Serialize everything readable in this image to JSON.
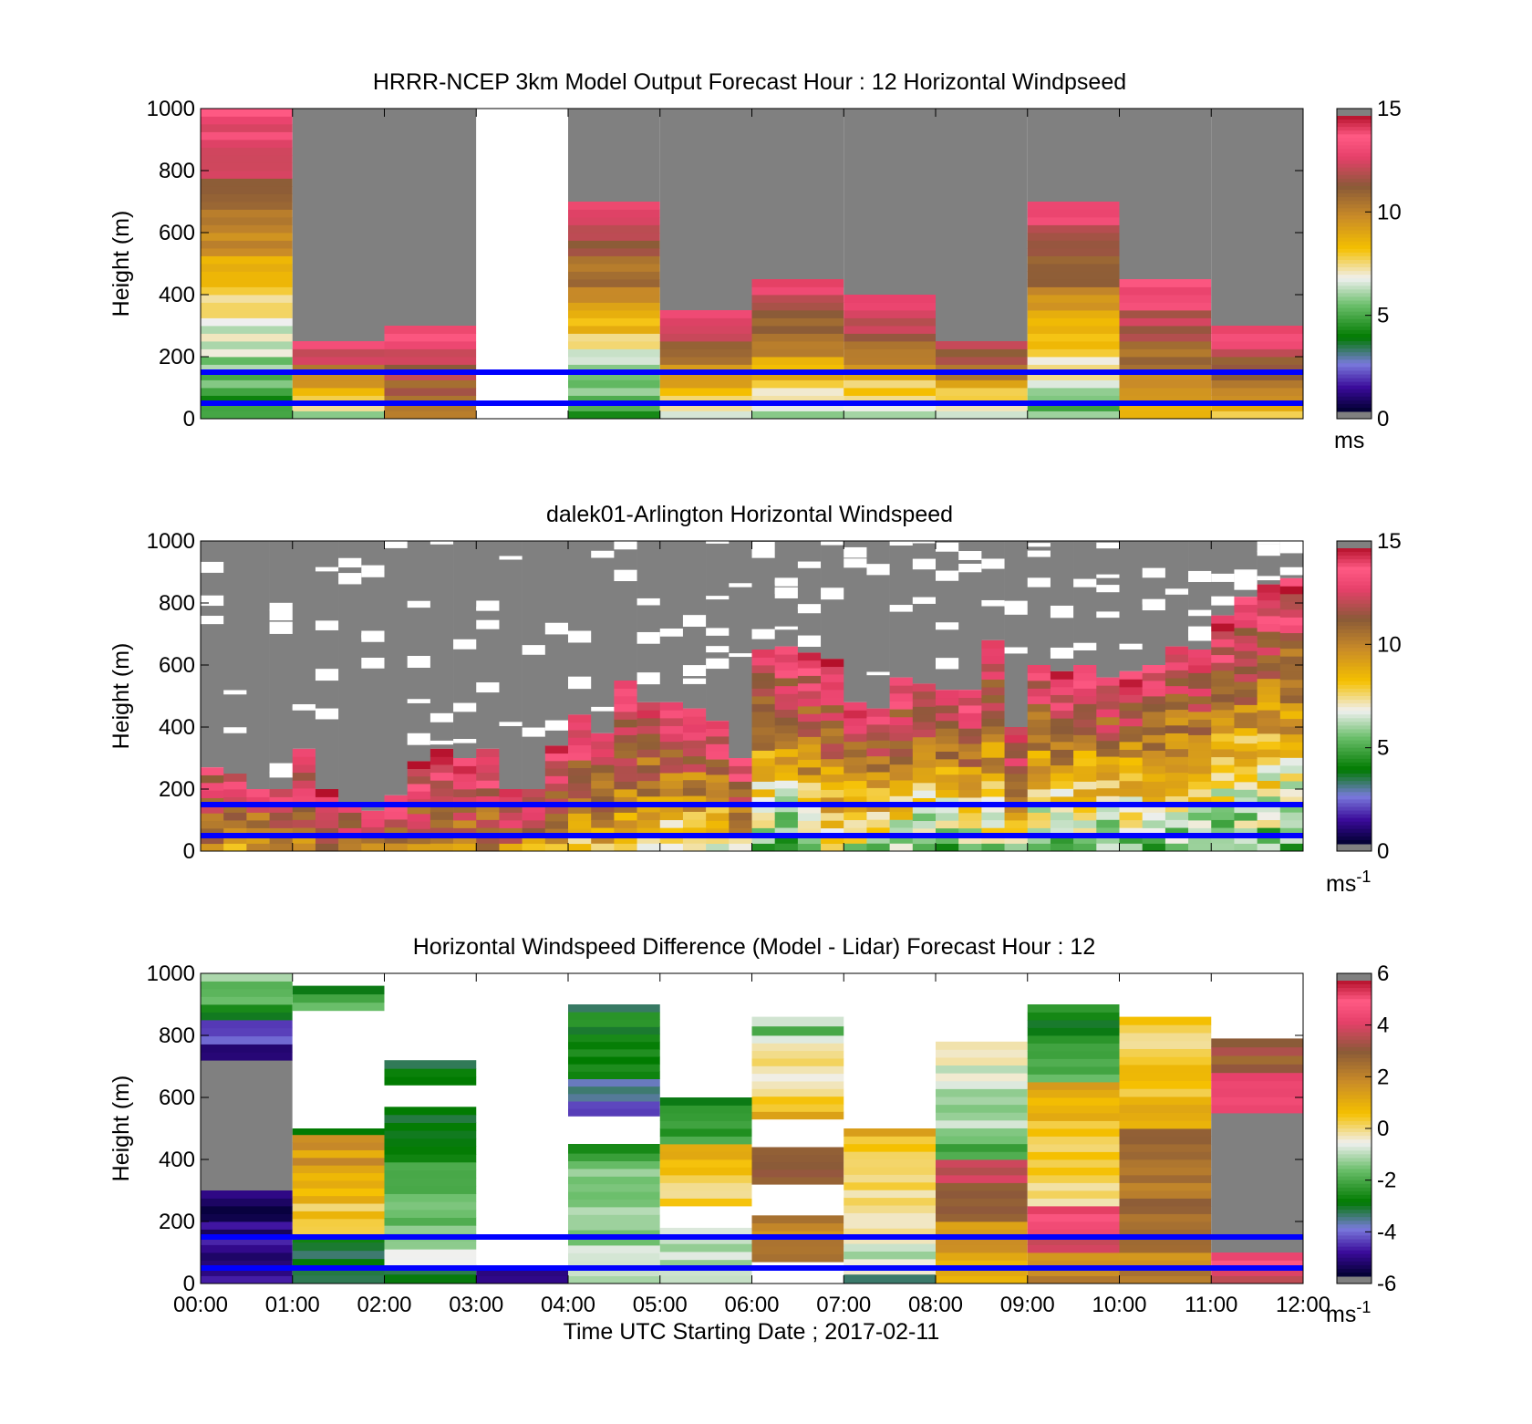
{
  "figure": {
    "x_ticks": [
      "00:00",
      "01:00",
      "02:00",
      "03:00",
      "04:00",
      "05:00",
      "06:00",
      "07:00",
      "08:00",
      "09:00",
      "10:00",
      "11:00",
      "12:00"
    ],
    "x_label": "Time UTC  Starting Date ; 2017-02-11",
    "reference_heights_m": [
      150,
      50
    ],
    "reference_line_color": "#0000ff",
    "missing_data_color": "#808080",
    "no_data_color": "#ffffff"
  },
  "chart_data": [
    {
      "type": "heatmap",
      "title": "HRRR-NCEP 3km Model Output   Forecast Hour : 12 Horizontal Windpseed",
      "ylabel": "Height (m)",
      "xlim": [
        0,
        12
      ],
      "ylim": [
        0,
        1000
      ],
      "y_ticks": [
        "0",
        "200",
        "400",
        "600",
        "800",
        "1000"
      ],
      "colorbar": {
        "ticks": [
          "0",
          "5",
          "10",
          "15"
        ],
        "unit": "ms",
        "unit_sup": "",
        "range": [
          0,
          15
        ]
      },
      "columns": [
        {
          "hour": 0,
          "top_m": 1000,
          "bottom_value": 4,
          "top_value": 14
        },
        {
          "hour": 1,
          "top_m": 250,
          "bottom_value": 6,
          "top_value": 14
        },
        {
          "hour": 2,
          "top_m": 300,
          "bottom_value": 10,
          "top_value": 14
        },
        {
          "hour": 3,
          "top_m": 0,
          "bottom_value": null,
          "top_value": null
        },
        {
          "hour": 4,
          "top_m": 700,
          "bottom_value": 4,
          "top_value": 14
        },
        {
          "hour": 5,
          "top_m": 350,
          "bottom_value": 6,
          "top_value": 14
        },
        {
          "hour": 6,
          "top_m": 450,
          "bottom_value": 6,
          "top_value": 14
        },
        {
          "hour": 7,
          "top_m": 400,
          "bottom_value": 6,
          "top_value": 14
        },
        {
          "hour": 8,
          "top_m": 250,
          "bottom_value": 6,
          "top_value": 13
        },
        {
          "hour": 9,
          "top_m": 700,
          "bottom_value": 5,
          "top_value": 14
        },
        {
          "hour": 10,
          "top_m": 450,
          "bottom_value": 8,
          "top_value": 14
        },
        {
          "hour": 11,
          "top_m": 300,
          "bottom_value": 8,
          "top_value": 14
        }
      ],
      "upper_region": "missing_data"
    },
    {
      "type": "heatmap",
      "title": "dalek01-Arlington  Horizontal Windspeed",
      "ylabel": "Height (m)",
      "xlim": [
        0,
        12
      ],
      "ylim": [
        0,
        1000
      ],
      "y_ticks": [
        "0",
        "200",
        "400",
        "600",
        "800",
        "1000"
      ],
      "colorbar": {
        "ticks": [
          "0",
          "5",
          "10",
          "15"
        ],
        "unit": "ms",
        "unit_sup": "-1",
        "range": [
          0,
          15
        ]
      },
      "sub_columns_per_hour": 4,
      "top_m": [
        270,
        250,
        200,
        200,
        330,
        200,
        150,
        130,
        180,
        290,
        330,
        300,
        330,
        200,
        200,
        340,
        440,
        380,
        550,
        480,
        480,
        460,
        420,
        300,
        650,
        660,
        640,
        620,
        480,
        460,
        560,
        540,
        520,
        520,
        680,
        400,
        600,
        580,
        600,
        560,
        580,
        600,
        660,
        650,
        760,
        820,
        860,
        880
      ],
      "bottom_value": [
        10,
        9,
        9,
        10,
        10,
        10,
        10,
        10,
        10,
        10,
        10,
        10,
        10,
        10,
        9,
        9,
        8,
        8,
        8,
        7,
        7,
        7,
        7,
        8,
        5,
        4,
        6,
        7,
        6,
        6,
        6,
        5,
        5,
        6,
        6,
        6,
        5,
        5,
        5,
        5,
        5,
        5,
        5,
        5,
        5,
        5,
        5,
        5
      ],
      "top_value": [
        13,
        13,
        13,
        14,
        14,
        14,
        14,
        14,
        14,
        14,
        14,
        14,
        14,
        14,
        14,
        14,
        14,
        14,
        14,
        14,
        14,
        14,
        14,
        14,
        14,
        14,
        14,
        14,
        14,
        14,
        14,
        14,
        14,
        14,
        14,
        14,
        14,
        14,
        14,
        14,
        14,
        14,
        14,
        14,
        14,
        14,
        14,
        14
      ],
      "upper_region": "missing_data_with_gaps"
    },
    {
      "type": "heatmap",
      "title": "Horizontal Windspeed Difference (Model - Lidar) Forecast Hour : 12",
      "ylabel": "Height (m)",
      "xlim": [
        0,
        12
      ],
      "ylim": [
        0,
        1000
      ],
      "y_ticks": [
        "0",
        "200",
        "400",
        "600",
        "800",
        "1000"
      ],
      "colorbar": {
        "ticks": [
          "-6",
          "-4",
          "-2",
          "0",
          "2",
          "4",
          "6"
        ],
        "unit": "ms",
        "unit_sup": "-1",
        "range": [
          -6,
          6
        ]
      },
      "columns": [
        {
          "hour": 0,
          "segments": [
            [
              0,
              300,
              -5,
              -5.5
            ],
            [
              300,
              720,
              null,
              null
            ],
            [
              720,
              850,
              -5.5,
              -4
            ],
            [
              850,
              1000,
              -3,
              -1
            ]
          ]
        },
        {
          "hour": 1,
          "segments": [
            [
              0,
              160,
              -4,
              -3
            ],
            [
              160,
              480,
              0,
              2
            ],
            [
              480,
              500,
              -3,
              -3
            ],
            [
              500,
              880,
              "empty",
              "empty"
            ],
            [
              880,
              960,
              -2,
              -3
            ]
          ]
        },
        {
          "hour": 2,
          "segments": [
            [
              0,
              60,
              -3,
              -3
            ],
            [
              60,
              570,
              -1,
              -3
            ],
            [
              570,
              640,
              "empty",
              "empty"
            ],
            [
              640,
              720,
              -3,
              -3
            ]
          ]
        },
        {
          "hour": 3,
          "segments": [
            [
              0,
              50,
              -5,
              -5
            ]
          ]
        },
        {
          "hour": 4,
          "segments": [
            [
              0,
              420,
              -1,
              -2
            ],
            [
              420,
              450,
              -2.5,
              -2.5
            ],
            [
              450,
              540,
              "empty",
              "empty"
            ],
            [
              540,
              660,
              -4,
              -4
            ],
            [
              660,
              900,
              -3,
              -3
            ]
          ]
        },
        {
          "hour": 5,
          "segments": [
            [
              0,
              180,
              -1,
              -1
            ],
            [
              180,
              250,
              "empty",
              "empty"
            ],
            [
              250,
              450,
              0,
              1
            ],
            [
              450,
              600,
              -2,
              -3
            ]
          ]
        },
        {
          "hour": 6,
          "segments": [
            [
              70,
              220,
              2,
              2
            ],
            [
              220,
              320,
              "empty",
              "empty"
            ],
            [
              320,
              440,
              3,
              3
            ],
            [
              440,
              530,
              "empty",
              "empty"
            ],
            [
              530,
              800,
              1,
              -1
            ],
            [
              800,
              860,
              -2,
              -1
            ]
          ]
        },
        {
          "hour": 7,
          "segments": [
            [
              0,
              30,
              -3,
              -3
            ],
            [
              30,
              500,
              -1,
              1
            ]
          ]
        },
        {
          "hour": 8,
          "segments": [
            [
              0,
              200,
              1,
              2
            ],
            [
              200,
              400,
              3,
              4
            ],
            [
              400,
              780,
              -2,
              0
            ]
          ]
        },
        {
          "hour": 9,
          "segments": [
            [
              0,
              100,
              2,
              2
            ],
            [
              100,
              250,
              4,
              5
            ],
            [
              250,
              650,
              0,
              1
            ],
            [
              650,
              900,
              -2,
              -3
            ]
          ]
        },
        {
          "hour": 10,
          "segments": [
            [
              0,
              500,
              2,
              3
            ],
            [
              500,
              860,
              1,
              0
            ]
          ]
        },
        {
          "hour": 11,
          "segments": [
            [
              0,
              100,
              4,
              5
            ],
            [
              100,
              550,
              null,
              null
            ],
            [
              550,
              680,
              4,
              5
            ],
            [
              680,
              790,
              3,
              3
            ]
          ]
        }
      ]
    }
  ]
}
